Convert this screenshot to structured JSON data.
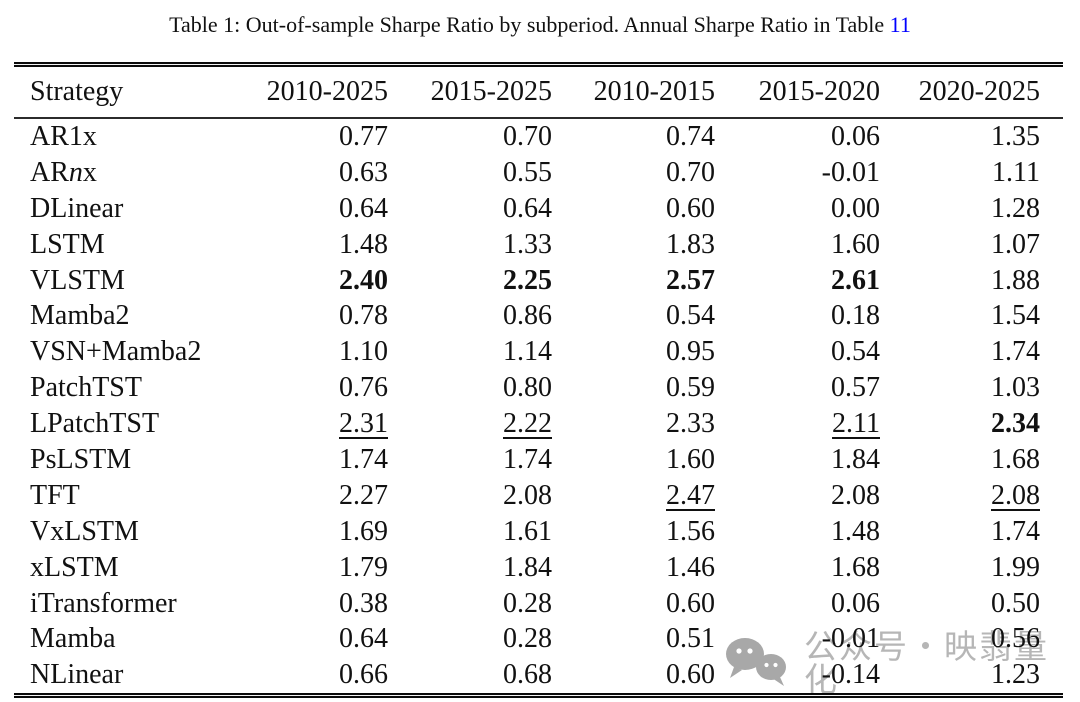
{
  "caption": {
    "prefix": "Table 1: Out-of-sample Sharpe Ratio by subperiod. Annual Sharpe Ratio in Table ",
    "link_text": "11"
  },
  "colors": {
    "text": "#111111",
    "link": "#0000ff",
    "watermark": "#b3b3b3",
    "rule": "#0a0a0a"
  },
  "table": {
    "columns": [
      "Strategy",
      "2010-2025",
      "2015-2025",
      "2010-2015",
      "2015-2020",
      "2020-2025"
    ],
    "rows": [
      {
        "label": "AR1x",
        "values": [
          "0.77",
          "0.70",
          "0.74",
          "0.06",
          "1.35"
        ],
        "styles": [
          "",
          "",
          "",
          "",
          ""
        ]
      },
      {
        "label": "ARnx",
        "label_parts": [
          {
            "t": "AR"
          },
          {
            "t": "n",
            "i": true
          },
          {
            "t": "x"
          }
        ],
        "values": [
          "0.63",
          "0.55",
          "0.70",
          "-0.01",
          "1.11"
        ],
        "styles": [
          "",
          "",
          "",
          "",
          ""
        ]
      },
      {
        "label": "DLinear",
        "values": [
          "0.64",
          "0.64",
          "0.60",
          "0.00",
          "1.28"
        ],
        "styles": [
          "",
          "",
          "",
          "",
          ""
        ]
      },
      {
        "label": "LSTM",
        "values": [
          "1.48",
          "1.33",
          "1.83",
          "1.60",
          "1.07"
        ],
        "styles": [
          "",
          "",
          "",
          "",
          ""
        ]
      },
      {
        "label": "VLSTM",
        "values": [
          "2.40",
          "2.25",
          "2.57",
          "2.61",
          "1.88"
        ],
        "styles": [
          "b",
          "b",
          "b",
          "b",
          ""
        ]
      },
      {
        "label": "Mamba2",
        "values": [
          "0.78",
          "0.86",
          "0.54",
          "0.18",
          "1.54"
        ],
        "styles": [
          "",
          "",
          "",
          "",
          ""
        ]
      },
      {
        "label": "VSN+Mamba2",
        "values": [
          "1.10",
          "1.14",
          "0.95",
          "0.54",
          "1.74"
        ],
        "styles": [
          "",
          "",
          "",
          "",
          ""
        ]
      },
      {
        "label": "PatchTST",
        "values": [
          "0.76",
          "0.80",
          "0.59",
          "0.57",
          "1.03"
        ],
        "styles": [
          "",
          "",
          "",
          "",
          ""
        ]
      },
      {
        "label": "LPatchTST",
        "values": [
          "2.31",
          "2.22",
          "2.33",
          "2.11",
          "2.34"
        ],
        "styles": [
          "u",
          "u",
          "",
          "u",
          "b"
        ]
      },
      {
        "label": "PsLSTM",
        "values": [
          "1.74",
          "1.74",
          "1.60",
          "1.84",
          "1.68"
        ],
        "styles": [
          "",
          "",
          "",
          "",
          ""
        ]
      },
      {
        "label": "TFT",
        "values": [
          "2.27",
          "2.08",
          "2.47",
          "2.08",
          "2.08"
        ],
        "styles": [
          "",
          "",
          "u",
          "",
          "u"
        ]
      },
      {
        "label": "VxLSTM",
        "values": [
          "1.69",
          "1.61",
          "1.56",
          "1.48",
          "1.74"
        ],
        "styles": [
          "",
          "",
          "",
          "",
          ""
        ]
      },
      {
        "label": "xLSTM",
        "values": [
          "1.79",
          "1.84",
          "1.46",
          "1.68",
          "1.99"
        ],
        "styles": [
          "",
          "",
          "",
          "",
          ""
        ]
      },
      {
        "label": "iTransformer",
        "values": [
          "0.38",
          "0.28",
          "0.60",
          "0.06",
          "0.50"
        ],
        "styles": [
          "",
          "",
          "",
          "",
          ""
        ]
      },
      {
        "label": "Mamba",
        "values": [
          "0.64",
          "0.28",
          "0.51",
          "-0.01",
          "0.56"
        ],
        "styles": [
          "",
          "",
          "",
          "",
          ""
        ]
      },
      {
        "label": "NLinear",
        "values": [
          "0.66",
          "0.68",
          "0.60",
          "-0.14",
          "1.23"
        ],
        "styles": [
          "",
          "",
          "",
          "",
          ""
        ]
      }
    ]
  },
  "watermark": {
    "icon": "wechat-bubbles-icon",
    "text": "公众号・映翡量化"
  }
}
